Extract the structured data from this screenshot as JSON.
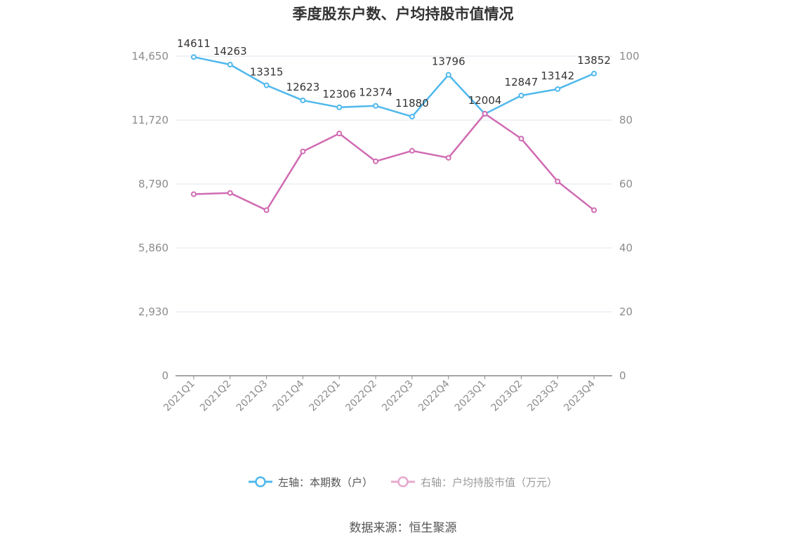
{
  "chart_data": {
    "type": "line",
    "title": "季度股东户数、户均持股市值情况",
    "categories": [
      "2021Q1",
      "2021Q2",
      "2021Q3",
      "2021Q4",
      "2022Q1",
      "2022Q2",
      "2022Q3",
      "2022Q4",
      "2023Q1",
      "2023Q2",
      "2023Q3",
      "2023Q4"
    ],
    "y_left": {
      "min": 0,
      "max": 14650,
      "ticks": [
        "0",
        "2,930",
        "5,860",
        "8,790",
        "11,720",
        "14,650"
      ]
    },
    "y_right": {
      "min": 0,
      "max": 100,
      "ticks": [
        "0",
        "20",
        "40",
        "60",
        "80",
        "100"
      ]
    },
    "grid": true,
    "legend_position": "bottom",
    "series": [
      {
        "name": "左轴：本期数（户）",
        "axis": "left",
        "color": "#4fb8ec",
        "values": [
          14611,
          14263,
          13315,
          12623,
          12306,
          12374,
          11880,
          13796,
          12004,
          12847,
          13142,
          13852
        ]
      },
      {
        "name": "右轴：户均持股市值（万元）",
        "axis": "right",
        "color": "#d06bb2",
        "values": [
          56.8,
          57.2,
          51.8,
          70.2,
          75.8,
          67.1,
          70.4,
          68.2,
          82.0,
          74.2,
          60.8,
          51.8
        ]
      }
    ]
  },
  "legend_colors": {
    "inactive_pink": "#e6a9cf"
  },
  "source_text": "数据来源：恒生聚源"
}
